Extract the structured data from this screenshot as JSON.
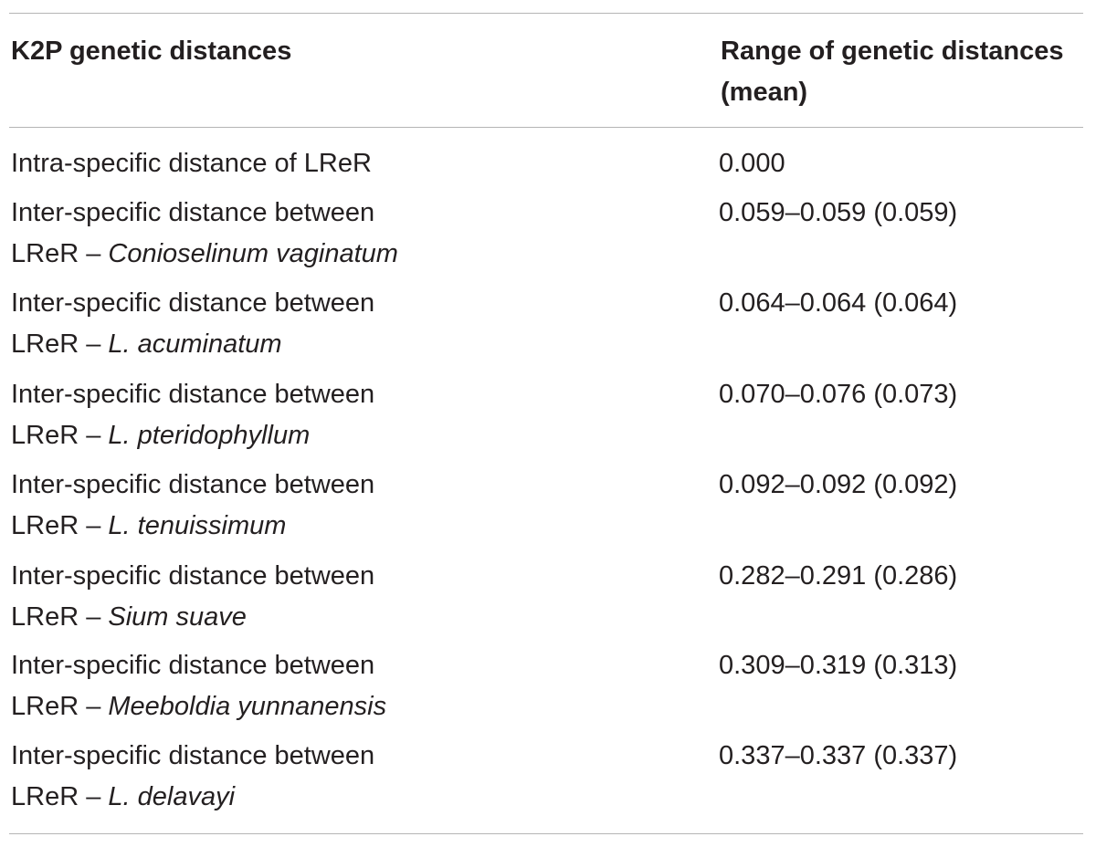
{
  "table": {
    "headers": {
      "col1": "K2P genetic distances",
      "col2": "Range of genetic distances (mean)"
    },
    "rows": [
      {
        "line1": "Intra-specific distance of LReR",
        "prefix": "",
        "species": "",
        "range": "0.000"
      },
      {
        "line1": "Inter-specific distance between",
        "prefix": "LReR – ",
        "species": "Conioselinum vaginatum",
        "range": "0.059–0.059 (0.059)"
      },
      {
        "line1": "Inter-specific distance between",
        "prefix": "LReR – ",
        "species": "L. acuminatum",
        "range": "0.064–0.064 (0.064)"
      },
      {
        "line1": "Inter-specific distance between",
        "prefix": "LReR – ",
        "species": "L. pteridophyllum",
        "range": "0.070–0.076 (0.073)"
      },
      {
        "line1": "Inter-specific distance between",
        "prefix": "LReR – ",
        "species": "L. tenuissimum",
        "range": "0.092–0.092 (0.092)"
      },
      {
        "line1": "Inter-specific distance between",
        "prefix": "LReR – ",
        "species": "Sium suave",
        "range": "0.282–0.291 (0.286)"
      },
      {
        "line1": "Inter-specific distance between",
        "prefix": "LReR – ",
        "species": "Meeboldia yunnanensis",
        "range": "0.309–0.319 (0.313)"
      },
      {
        "line1": "Inter-specific distance between",
        "prefix": "LReR – ",
        "species": "L. delavayi",
        "range": "0.337–0.337 (0.337)"
      }
    ]
  }
}
